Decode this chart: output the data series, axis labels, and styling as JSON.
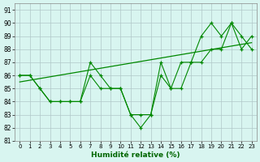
{
  "xlabel": "Humidité relative (%)",
  "background_color": "#d8f5f0",
  "grid_color": "#b0c8c8",
  "line_color": "#008800",
  "xlim": [
    -0.5,
    23.5
  ],
  "ylim": [
    81,
    91.5
  ],
  "yticks": [
    81,
    82,
    83,
    84,
    85,
    86,
    87,
    88,
    89,
    90,
    91
  ],
  "xticks": [
    0,
    1,
    2,
    3,
    4,
    5,
    6,
    7,
    8,
    9,
    10,
    11,
    12,
    13,
    14,
    15,
    16,
    17,
    18,
    19,
    20,
    21,
    22,
    23
  ],
  "series1_y": [
    86,
    86,
    85,
    84,
    84,
    84,
    84,
    87,
    86,
    85,
    85,
    83,
    82,
    83,
    87,
    85,
    87,
    87,
    89,
    90,
    89,
    90,
    88,
    89
  ],
  "series2_y": [
    86,
    86,
    85,
    84,
    84,
    84,
    84,
    86,
    85,
    85,
    85,
    83,
    83,
    83,
    86,
    85,
    85,
    87,
    87,
    88,
    88,
    90,
    89,
    88
  ],
  "trend_x": [
    0,
    23
  ],
  "trend_y": [
    85.5,
    88.5
  ]
}
